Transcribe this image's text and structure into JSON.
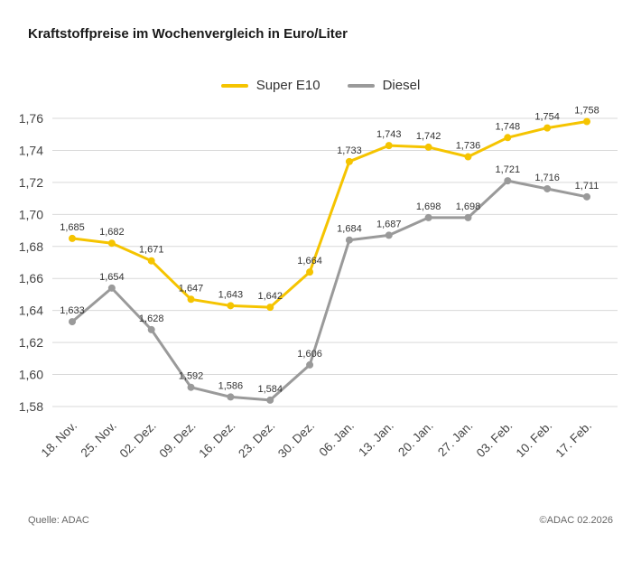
{
  "title": "Kraftstoffpreise im Wochenvergleich in Euro/Liter",
  "footer": {
    "source": "Quelle: ADAC",
    "copyright": "©ADAC 02.2026"
  },
  "colors": {
    "super_e10": "#F5C400",
    "diesel": "#9A9A9A",
    "gridline": "#d9d9d9"
  },
  "chart_data": {
    "type": "line",
    "title": "Kraftstoffpreise im Wochenvergleich in Euro/Liter",
    "categories": [
      "18. Nov.",
      "25. Nov.",
      "02. Dez.",
      "09. Dez.",
      "16. Dez.",
      "23. Dez.",
      "30. Dez.",
      "06. Jan.",
      "13. Jan.",
      "20. Jan.",
      "27. Jan.",
      "03. Feb.",
      "10. Feb.",
      "17. Feb."
    ],
    "series": [
      {
        "name": "Super E10",
        "color": "#F5C400",
        "values": [
          1.685,
          1.682,
          1.671,
          1.647,
          1.643,
          1.642,
          1.664,
          1.733,
          1.743,
          1.742,
          1.736,
          1.748,
          1.754,
          1.758
        ]
      },
      {
        "name": "Diesel",
        "color": "#9A9A9A",
        "values": [
          1.633,
          1.654,
          1.628,
          1.592,
          1.586,
          1.584,
          1.606,
          1.684,
          1.687,
          1.698,
          1.698,
          1.721,
          1.716,
          1.711
        ]
      }
    ],
    "ylim": [
      1.58,
      1.76
    ],
    "ytick_step": 0.02,
    "grid": true,
    "legend_position": "top-center",
    "decimal_separator": ",",
    "unit": "Euro/Liter"
  }
}
